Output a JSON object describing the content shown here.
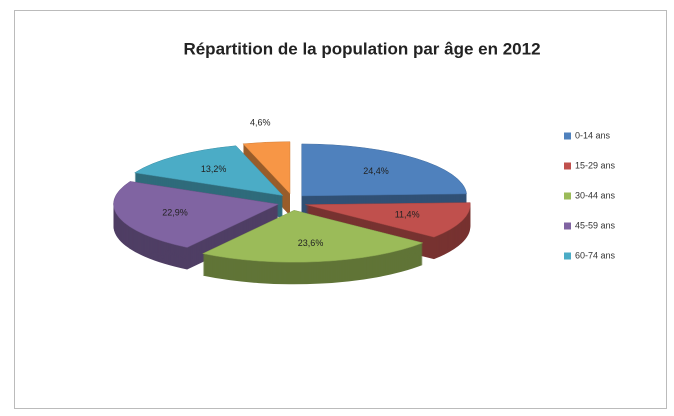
{
  "chart_data": {
    "type": "pie",
    "title": "Répartition de la population par âge en 2012",
    "categories": [
      "0-14 ans",
      "15-29 ans",
      "30-44 ans",
      "45-59 ans",
      "60-74 ans",
      null
    ],
    "values": [
      24.4,
      11.4,
      23.6,
      22.9,
      13.2,
      4.6
    ],
    "value_labels": [
      "24,4%",
      "11,4%",
      "23,6%",
      "22,9%",
      "13,2%",
      "4,6%"
    ],
    "colors": [
      "#4f81bd",
      "#c0504d",
      "#9bbb59",
      "#8064a2",
      "#4bacc6",
      "#f79646"
    ],
    "legend": "right"
  }
}
